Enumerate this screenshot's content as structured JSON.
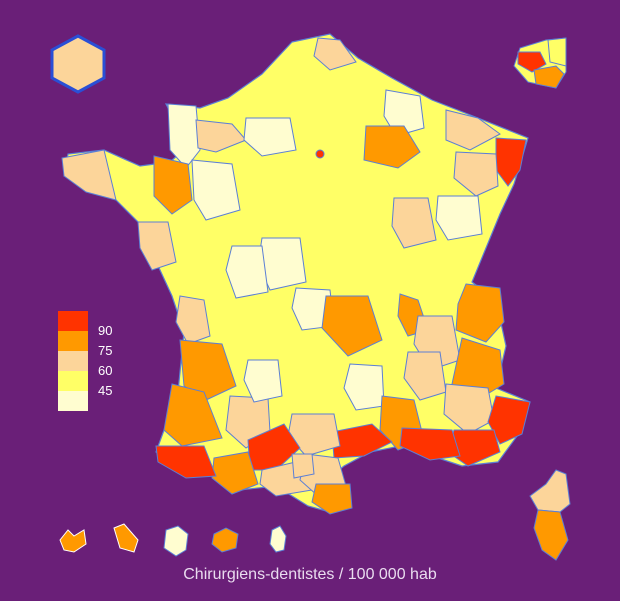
{
  "title": "Chirurgiens-dentistes / 100 000 hab",
  "legend": {
    "colors": [
      "#ff3300",
      "#ff9900",
      "#fcd59a",
      "#ffff66",
      "#fffdd0"
    ],
    "ticks": [
      "90",
      "75",
      "60",
      "45"
    ]
  },
  "colors": {
    "background": "#6a1f78",
    "border": "#5b7fd6",
    "hexagon_fill": "#fcd59a",
    "hexagon_stroke": "#2a4fd6"
  },
  "insets": [
    "guadeloupe",
    "martinique",
    "guyane",
    "la-reunion",
    "mayotte",
    "corse",
    "paris-petite-couronne"
  ]
}
